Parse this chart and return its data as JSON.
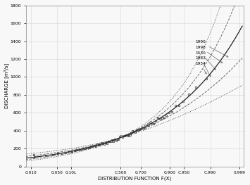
{
  "title": "",
  "xlabel": "DISTRIBUTION FUNCTION F(X)",
  "ylabel": "DISCHARGE [m³/s]",
  "ylim": [
    0,
    1800
  ],
  "yticks": [
    0,
    200,
    400,
    600,
    800,
    1000,
    1200,
    1400,
    1600,
    1800
  ],
  "xtick_probs": [
    0.01,
    0.05,
    0.1,
    0.5,
    0.7,
    0.9,
    0.95,
    0.99,
    0.999
  ],
  "xtick_labels": [
    "0.010",
    "0.050",
    "0.10L",
    "C.500",
    "0.700",
    "0.900",
    "C.950",
    "C.990",
    "0.999"
  ],
  "bg_color": "#f8f8f8",
  "grid_color": "#cccccc",
  "line_color": "#222222",
  "dash_color": "#555555",
  "point_color": "#333333",
  "mu": 5.78,
  "sigma": 0.5,
  "annotations": [
    {
      "label": "1990",
      "prob": 0.9978,
      "q": 1210,
      "text_prob": 0.974,
      "text_q": 1390
    },
    {
      "label": "1998",
      "prob": 0.9965,
      "q": 1140,
      "text_prob": 0.974,
      "text_q": 1330
    },
    {
      "label": "1530",
      "prob": 0.994,
      "q": 1060,
      "text_prob": 0.974,
      "text_q": 1270
    },
    {
      "label": "1983",
      "prob": 0.991,
      "q": 980,
      "text_prob": 0.974,
      "text_q": 1210
    },
    {
      "label": "1954",
      "prob": 0.988,
      "q": 1010,
      "text_prob": 0.974,
      "text_q": 1150
    }
  ],
  "n_data_points": 76,
  "p_min": 0.01,
  "p_max": 0.997,
  "outlier_prob": 0.012,
  "outlier_q": 130
}
